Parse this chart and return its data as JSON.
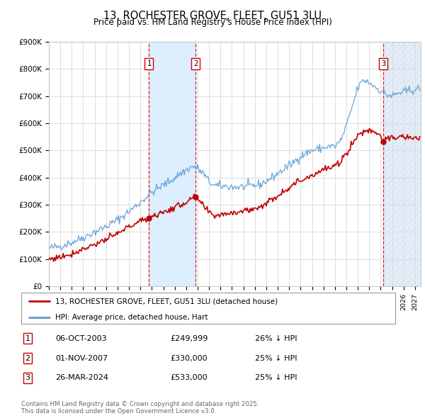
{
  "title": "13, ROCHESTER GROVE, FLEET, GU51 3LU",
  "subtitle": "Price paid vs. HM Land Registry's House Price Index (HPI)",
  "title_fontsize": 10.5,
  "subtitle_fontsize": 8.5,
  "ylim": [
    0,
    900000
  ],
  "xlim_start": 1995.0,
  "xlim_end": 2027.5,
  "yticks": [
    0,
    100000,
    200000,
    300000,
    400000,
    500000,
    600000,
    700000,
    800000,
    900000
  ],
  "ytick_labels": [
    "£0",
    "£100K",
    "£200K",
    "£300K",
    "£400K",
    "£500K",
    "£600K",
    "£700K",
    "£800K",
    "£900K"
  ],
  "xticks": [
    1995,
    1996,
    1997,
    1998,
    1999,
    2000,
    2001,
    2002,
    2003,
    2004,
    2005,
    2006,
    2007,
    2008,
    2009,
    2010,
    2011,
    2012,
    2013,
    2014,
    2015,
    2016,
    2017,
    2018,
    2019,
    2020,
    2021,
    2022,
    2023,
    2024,
    2025,
    2026,
    2027
  ],
  "hpi_color": "#5b9bd5",
  "price_color": "#c00000",
  "shade_color": "#ddeeff",
  "hatch_color": "#ccddee",
  "grid_color": "#d8d8d8",
  "background_color": "#ffffff",
  "t1_date": 2003.75,
  "t2_date": 2007.83,
  "t3_date": 2024.23,
  "t1_price": 249999,
  "t2_price": 330000,
  "t3_price": 533000,
  "legend_entries": [
    "13, ROCHESTER GROVE, FLEET, GU51 3LU (detached house)",
    "HPI: Average price, detached house, Hart"
  ],
  "table_entries": [
    {
      "num": "1",
      "date": "06-OCT-2003",
      "price": "£249,999",
      "note": "26% ↓ HPI"
    },
    {
      "num": "2",
      "date": "01-NOV-2007",
      "price": "£330,000",
      "note": "25% ↓ HPI"
    },
    {
      "num": "3",
      "date": "26-MAR-2024",
      "price": "£533,000",
      "note": "25% ↓ HPI"
    }
  ],
  "footnote": "Contains HM Land Registry data © Crown copyright and database right 2025.\nThis data is licensed under the Open Government Licence v3.0."
}
